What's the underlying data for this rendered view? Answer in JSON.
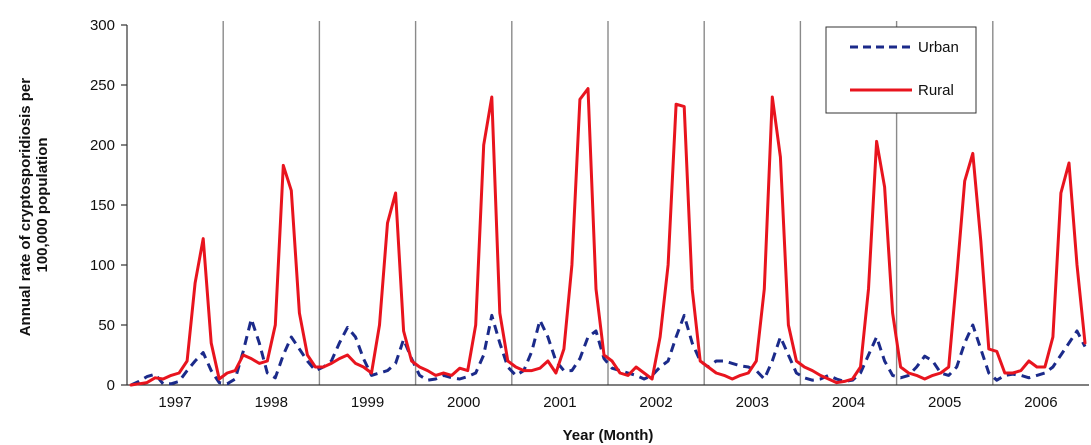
{
  "chart_data": {
    "type": "line",
    "title": "",
    "xlabel": "Year (Month)",
    "ylabel_lines": [
      "Annual rate of cryptosporidiosis per",
      "100,000 population"
    ],
    "ylim": [
      0,
      300
    ],
    "yticks": [
      0,
      50,
      100,
      150,
      200,
      250,
      300
    ],
    "years": [
      "1997",
      "1998",
      "1999",
      "2000",
      "2001",
      "2002",
      "2003",
      "2004",
      "2005",
      "2006"
    ],
    "x_unit": "month index from Jan 1997 (0–119)",
    "legend_position": "top-right",
    "series": [
      {
        "name": "Urban",
        "color": "#1b2a8a",
        "dash": "dashed",
        "values": [
          0,
          3,
          7,
          9,
          1,
          1,
          3,
          12,
          20,
          27,
          12,
          2,
          1,
          5,
          28,
          55,
          35,
          10,
          6,
          25,
          40,
          30,
          20,
          12,
          15,
          20,
          35,
          48,
          40,
          22,
          8,
          10,
          12,
          18,
          38,
          22,
          8,
          4,
          5,
          8,
          6,
          5,
          7,
          10,
          25,
          58,
          35,
          15,
          8,
          12,
          28,
          54,
          40,
          20,
          12,
          12,
          22,
          40,
          45,
          22,
          14,
          12,
          10,
          8,
          5,
          8,
          15,
          20,
          40,
          58,
          35,
          20,
          15,
          20,
          20,
          18,
          16,
          15,
          12,
          5,
          20,
          40,
          25,
          10,
          6,
          4,
          5,
          8,
          5,
          3,
          4,
          10,
          25,
          40,
          20,
          8,
          6,
          8,
          15,
          24,
          20,
          10,
          8,
          15,
          35,
          50,
          30,
          10,
          4,
          8,
          9,
          8,
          6,
          8,
          10,
          15,
          25,
          35,
          45,
          32
        ]
      },
      {
        "name": "Rural",
        "color": "#e8141e",
        "dash": "solid",
        "values": [
          0,
          1,
          2,
          6,
          5,
          8,
          10,
          20,
          85,
          122,
          35,
          5,
          10,
          12,
          25,
          22,
          18,
          20,
          50,
          183,
          162,
          60,
          25,
          15,
          15,
          18,
          22,
          25,
          18,
          15,
          10,
          50,
          135,
          160,
          45,
          20,
          15,
          12,
          8,
          10,
          8,
          14,
          12,
          50,
          200,
          240,
          60,
          20,
          15,
          12,
          12,
          14,
          20,
          10,
          30,
          100,
          238,
          247,
          80,
          25,
          20,
          10,
          8,
          15,
          10,
          5,
          40,
          100,
          234,
          232,
          80,
          20,
          15,
          10,
          8,
          5,
          8,
          10,
          20,
          80,
          240,
          190,
          50,
          20,
          15,
          12,
          8,
          5,
          2,
          3,
          5,
          15,
          80,
          203,
          165,
          60,
          15,
          10,
          8,
          5,
          8,
          10,
          15,
          90,
          170,
          193,
          120,
          30,
          28,
          10,
          10,
          12,
          20,
          15,
          15,
          40,
          160,
          185,
          100,
          35
        ]
      }
    ]
  }
}
